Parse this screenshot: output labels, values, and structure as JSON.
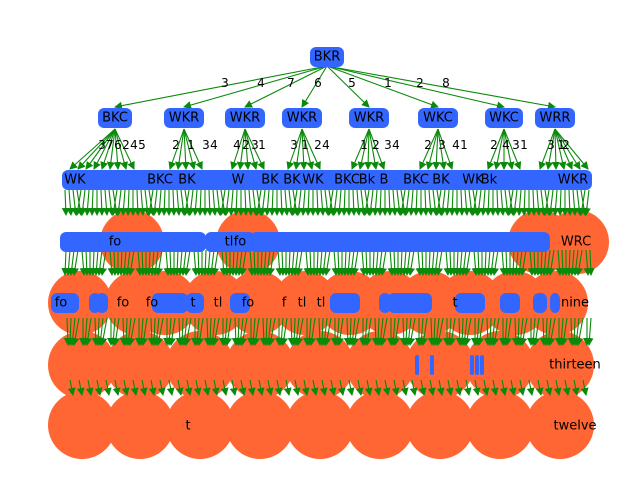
{
  "colors": {
    "node_blue": "#3366ff",
    "node_orange": "#ff6633",
    "edge_green": "#0a8a0a",
    "label": "#000000",
    "background": "#ffffff"
  },
  "root": {
    "label": "BKR"
  },
  "level1": [
    {
      "label": "BKC",
      "edge_label": "3"
    },
    {
      "label": "WKR",
      "edge_label": "4"
    },
    {
      "label": "WKR",
      "edge_label": "7"
    },
    {
      "label": "WKR",
      "edge_label": "6"
    },
    {
      "label": "WKR",
      "edge_label": "5"
    },
    {
      "label": "WKC",
      "edge_label": "1"
    },
    {
      "label": "WKC",
      "edge_label": "2"
    },
    {
      "label": "WRR",
      "edge_label": "8"
    }
  ],
  "level1_child_edge_labels": [
    [
      "3",
      "7",
      "6",
      "2",
      "4",
      "5"
    ],
    [
      "2",
      "1",
      "3",
      "4"
    ],
    [
      "4",
      "2",
      "3",
      "1"
    ],
    [
      "3",
      "1",
      "2",
      "4"
    ],
    [
      "1",
      "2",
      "3",
      "4"
    ],
    [
      "2",
      "3",
      "4",
      "1"
    ],
    [
      "2",
      "4",
      "3",
      "1"
    ],
    [
      "3",
      "1",
      "2"
    ]
  ],
  "level2_labels": [
    "WK",
    "BKC",
    "BK",
    "W",
    "BK",
    "BK",
    "WK",
    "BKC",
    "Bk",
    "B",
    "BKC",
    "BK",
    "WK",
    "Bk",
    "WKR"
  ],
  "level3_labels": [
    "fo",
    "tl",
    "fo",
    "WRC"
  ],
  "level4_labels": [
    "fo",
    "fo",
    "fo",
    "t",
    "tl",
    "fo",
    "f",
    "tl",
    "tl",
    "t",
    "nine"
  ],
  "level5_labels": [
    "thirteen"
  ],
  "level6_labels": [
    "t",
    "twelve"
  ]
}
